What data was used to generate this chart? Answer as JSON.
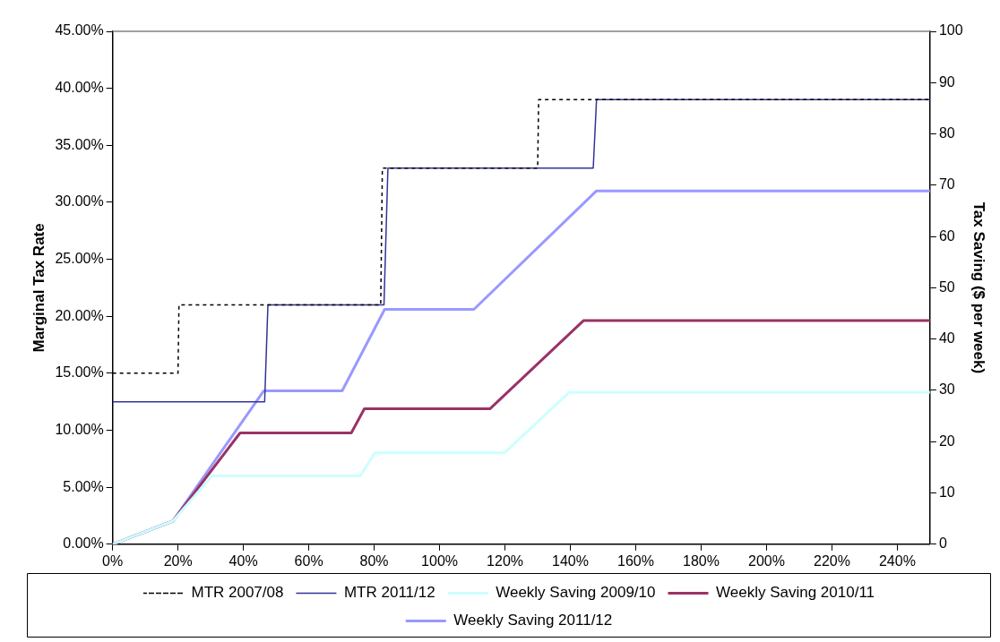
{
  "chart_data": {
    "type": "line",
    "xlabel": null,
    "ylabel": "Marginal Tax Rate",
    "y2label": "Tax Saving ($ per week)",
    "xlim": [
      0,
      250
    ],
    "xticks": [
      {
        "value": 0,
        "label": "0%"
      },
      {
        "value": 20,
        "label": "20%"
      },
      {
        "value": 40,
        "label": "40%"
      },
      {
        "value": 60,
        "label": "60%"
      },
      {
        "value": 80,
        "label": "80%"
      },
      {
        "value": 100,
        "label": "100%"
      },
      {
        "value": 120,
        "label": "120%"
      },
      {
        "value": 140,
        "label": "140%"
      },
      {
        "value": 160,
        "label": "160%"
      },
      {
        "value": 180,
        "label": "180%"
      },
      {
        "value": 200,
        "label": "200%"
      },
      {
        "value": 220,
        "label": "220%"
      },
      {
        "value": 240,
        "label": "240%"
      }
    ],
    "ylim": [
      0,
      45
    ],
    "yticks": [
      {
        "value": 0,
        "label": "0.00%"
      },
      {
        "value": 5,
        "label": "5.00%"
      },
      {
        "value": 10,
        "label": "10.00%"
      },
      {
        "value": 15,
        "label": "15.00%"
      },
      {
        "value": 20,
        "label": "20.00%"
      },
      {
        "value": 25,
        "label": "25.00%"
      },
      {
        "value": 30,
        "label": "30.00%"
      },
      {
        "value": 35,
        "label": "35.00%"
      },
      {
        "value": 40,
        "label": "40.00%"
      },
      {
        "value": 45,
        "label": "45.00%"
      }
    ],
    "y2lim": [
      0,
      100
    ],
    "y2ticks": [
      0,
      10,
      20,
      30,
      40,
      50,
      60,
      70,
      80,
      90,
      100
    ],
    "grid": false,
    "legend": "bottom",
    "marker": "none",
    "series": [
      {
        "name": "MTR 2007/08",
        "color": "#000000",
        "line_style": "dashed",
        "x": [
          0,
          20,
          20.3,
          82,
          82.5,
          130,
          130.3,
          250
        ],
        "values": [
          15,
          15,
          21,
          21,
          33,
          33,
          39,
          39
        ]
      },
      {
        "name": "MTR 2011/12",
        "color": "#333399",
        "line_style": "solid",
        "x": [
          0,
          46.5,
          47.5,
          83,
          84.2,
          147,
          148,
          250
        ],
        "values": [
          12.5,
          12.5,
          21,
          21,
          33,
          33,
          39,
          39
        ]
      },
      {
        "name": "Weekly Saving 2009/10",
        "color": "#ccffff",
        "line_style": "solid",
        "axis": "y2",
        "x": [
          0,
          18.4,
          30.4,
          75.7,
          80.2,
          119.8,
          139.6,
          250
        ],
        "values": [
          0,
          4.5,
          13.3,
          13.3,
          17.8,
          17.8,
          29.6,
          29.6
        ]
      },
      {
        "name": "Weekly Saving 2010/11",
        "color": "#993366",
        "line_style": "solid",
        "axis": "y2",
        "x": [
          0,
          18.4,
          39,
          73,
          77,
          115.4,
          144,
          250
        ],
        "values": [
          0,
          4.5,
          21.7,
          21.7,
          26.4,
          26.4,
          43.6,
          43.6
        ]
      },
      {
        "name": "Weekly Saving 2011/12",
        "color": "#9999ff",
        "line_style": "solid",
        "axis": "y2",
        "x": [
          0,
          18.4,
          46.2,
          70.2,
          83.2,
          110.5,
          148,
          250
        ],
        "values": [
          0,
          4.5,
          29.9,
          29.9,
          45.8,
          45.8,
          68.9,
          68.9
        ]
      }
    ]
  }
}
